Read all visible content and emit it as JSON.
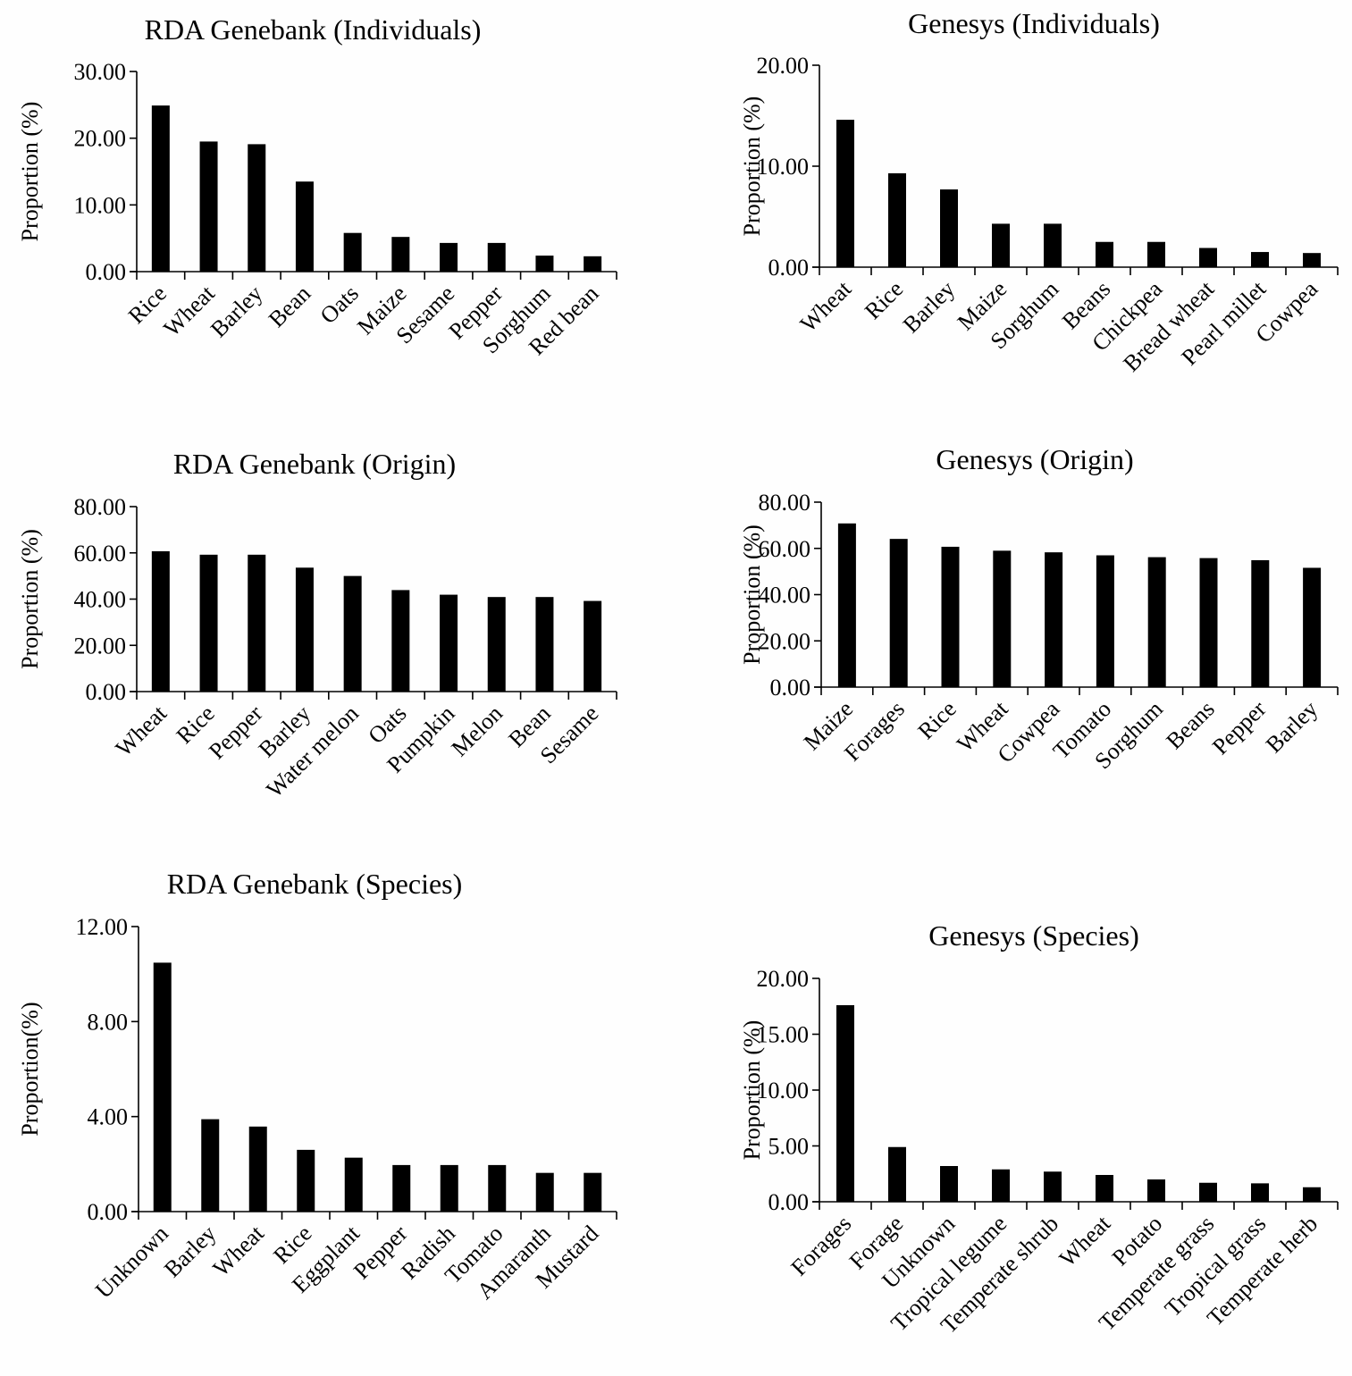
{
  "chart_data": [
    {
      "type": "bar",
      "title": "RDA Genebank (Individuals)",
      "xlabel": "",
      "ylabel": "Proportion (%)",
      "ylim": [
        0,
        30
      ],
      "yticks": [
        "0.00",
        "10.00",
        "20.00",
        "30.00"
      ],
      "categories": [
        "Rice",
        "Wheat",
        "Barley",
        "Bean",
        "Oats",
        "Maize",
        "Sesame",
        "Pepper",
        "Sorghum",
        "Red bean"
      ],
      "values": [
        24.9,
        19.5,
        19.1,
        13.5,
        5.8,
        5.2,
        4.3,
        4.3,
        2.4,
        2.3
      ],
      "grid": false,
      "bar_color": "#000000"
    },
    {
      "type": "bar",
      "title": "Genesys (Individuals)",
      "xlabel": "",
      "ylabel": "Proportion (%)",
      "ylim": [
        0,
        20
      ],
      "yticks": [
        "0.00",
        "10.00",
        "20.00"
      ],
      "categories": [
        "Wheat",
        "Rice",
        "Barley",
        "Maize",
        "Sorghum",
        "Beans",
        "Chickpea",
        "Bread wheat",
        "Pearl millet",
        "Cowpea"
      ],
      "values": [
        14.6,
        9.3,
        7.7,
        4.3,
        4.3,
        2.5,
        2.5,
        1.9,
        1.5,
        1.4
      ],
      "grid": false,
      "bar_color": "#000000"
    },
    {
      "type": "bar",
      "title": "RDA Genebank (Origin)",
      "xlabel": "",
      "ylabel": "Proportion (%)",
      "ylim": [
        0,
        80
      ],
      "yticks": [
        "0.00",
        "20.00",
        "40.00",
        "60.00",
        "80.00"
      ],
      "categories": [
        "Wheat",
        "Rice",
        "Pepper",
        "Barley",
        "Water melon",
        "Oats",
        "Pumpkin",
        "Melon",
        "Bean",
        "Sesame"
      ],
      "values": [
        60.7,
        59.2,
        59.2,
        53.6,
        50.0,
        43.9,
        41.9,
        40.9,
        40.9,
        39.2
      ],
      "grid": false,
      "bar_color": "#000000"
    },
    {
      "type": "bar",
      "title": "Genesys (Origin)",
      "xlabel": "",
      "ylabel": "Proportion (%)",
      "ylim": [
        0,
        80
      ],
      "yticks": [
        "0.00",
        "20.00",
        "40.00",
        "60.00",
        "80.00"
      ],
      "categories": [
        "Maize",
        "Forages",
        "Rice",
        "Wheat",
        "Cowpea",
        "Tomato",
        "Sorghum",
        "Beans",
        "Pepper",
        "Barley"
      ],
      "values": [
        70.8,
        64.1,
        60.7,
        59.0,
        58.3,
        57.0,
        56.2,
        55.8,
        54.9,
        51.6
      ],
      "grid": false,
      "bar_color": "#000000"
    },
    {
      "type": "bar",
      "title": "RDA Genebank (Species)",
      "xlabel": "",
      "ylabel": "Proportion(%)",
      "ylim": [
        0,
        12
      ],
      "yticks": [
        "0.00",
        "4.00",
        "8.00",
        "12.00"
      ],
      "categories": [
        "Unknown",
        "Barley",
        "Wheat",
        "Rice",
        "Eggplant",
        "Pepper",
        "Radish",
        "Tomato",
        "Amaranth",
        "Mustard"
      ],
      "values": [
        10.48,
        3.89,
        3.58,
        2.6,
        2.27,
        1.96,
        1.96,
        1.96,
        1.63,
        1.63
      ],
      "grid": false,
      "bar_color": "#000000"
    },
    {
      "type": "bar",
      "title": "Genesys (Species)",
      "xlabel": "",
      "ylabel": "Proportion (%)",
      "ylim": [
        0,
        20
      ],
      "yticks": [
        "0.00",
        "5.00",
        "10.00",
        "15.00",
        "20.00"
      ],
      "categories": [
        "Forages",
        "Forage",
        "Unknown",
        "Tropical legume",
        "Temperate shrub",
        "Wheat",
        "Potato",
        "Temperate grass",
        "Tropical grass",
        "Temperate herb"
      ],
      "values": [
        17.6,
        4.9,
        3.2,
        2.9,
        2.7,
        2.4,
        2.0,
        1.7,
        1.65,
        1.3
      ],
      "grid": false,
      "bar_color": "#000000"
    }
  ]
}
